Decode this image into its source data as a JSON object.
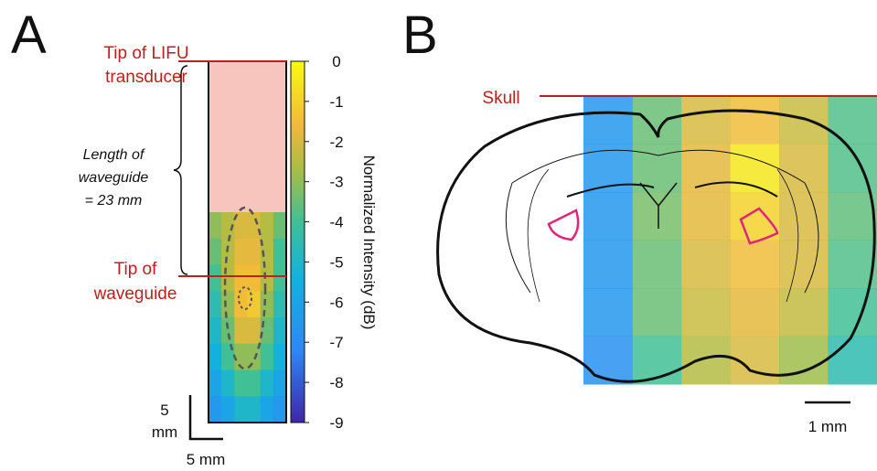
{
  "panel_a": {
    "letter": "A",
    "tip_transducer": [
      "Tip of LIFU",
      "transducer"
    ],
    "length_note": [
      "Length of",
      "waveguide",
      "= 23 mm"
    ],
    "tip_waveguide": [
      "Tip of",
      "waveguide"
    ],
    "scale_vertical": [
      "5",
      "mm"
    ],
    "scale_horizontal": "5 mm",
    "heatmap": {
      "values": [
        [
          -3,
          -2.5,
          -2,
          -2,
          -2.5,
          -3.5
        ],
        [
          -3.5,
          -2.5,
          -1.8,
          -1.8,
          -2.5,
          -4
        ],
        [
          -4,
          -2.5,
          -1.5,
          -1.5,
          -2.5,
          -4
        ],
        [
          -4.5,
          -3,
          -1.5,
          -1.2,
          -3,
          -4.5
        ],
        [
          -5,
          -3.5,
          -2,
          -2,
          -3.5,
          -5
        ],
        [
          -5.5,
          -4,
          -3,
          -3,
          -4,
          -5.5
        ],
        [
          -6,
          -5,
          -4,
          -4,
          -5,
          -6
        ],
        [
          -6.5,
          -6,
          -5,
          -5,
          -6,
          -6.5
        ]
      ]
    }
  },
  "colorbar": {
    "label": "Normalized Intensity (dB)",
    "lim": [
      -9,
      0
    ],
    "ticks": [
      0,
      -1,
      -2,
      -3,
      -4,
      -5,
      -6,
      -7,
      -8,
      -9
    ]
  },
  "panel_b": {
    "letter": "B",
    "skull": "Skull",
    "scale": "1 mm",
    "heatmap": {
      "values": [
        [
          -6.5,
          -3.5,
          -2,
          -1.5,
          -2.2,
          -3.8
        ],
        [
          -6.5,
          -3.5,
          -1.8,
          -0.5,
          -2,
          -3.8
        ],
        [
          -6.5,
          -3.3,
          -1.8,
          -1,
          -2,
          -3.6
        ],
        [
          -6.5,
          -3.5,
          -2,
          -1.5,
          -2,
          -3.8
        ],
        [
          -6.5,
          -3.5,
          -2.2,
          -1.8,
          -2.3,
          -4
        ],
        [
          -6.8,
          -4,
          -2.5,
          -2,
          -2.8,
          -4.5
        ]
      ]
    }
  }
}
